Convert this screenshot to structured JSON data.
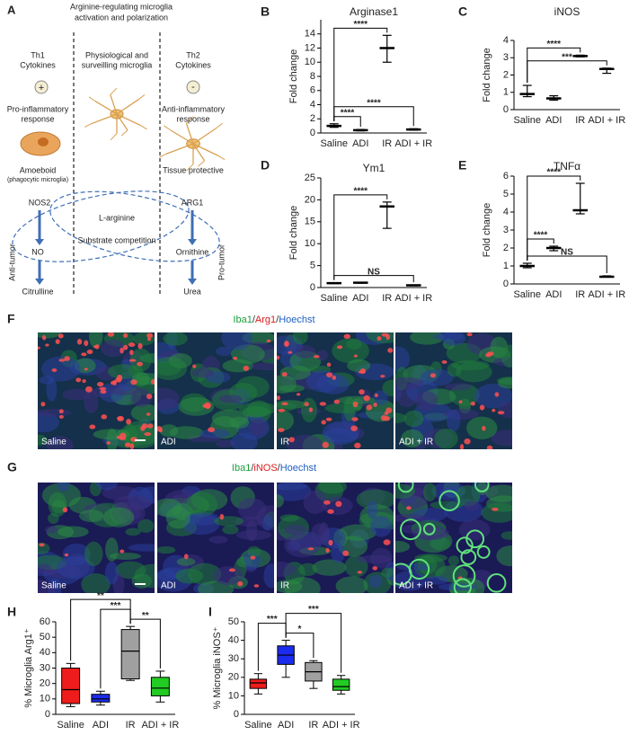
{
  "chart_data": [
    {
      "panel": "B",
      "type": "errorbar",
      "title": "Arginase1",
      "ylabel": "Fold change",
      "color": "#000000",
      "categories": [
        "Saline",
        "ADI",
        "IR",
        "ADI + IR"
      ],
      "values": [
        1.0,
        0.4,
        12,
        0.5
      ],
      "low": [
        0.8,
        0.3,
        10,
        0.4
      ],
      "high": [
        1.3,
        0.5,
        13.8,
        0.6
      ],
      "ylim": [
        0,
        16
      ],
      "yticks": [
        0,
        2,
        4,
        6,
        8,
        10,
        12,
        14
      ],
      "annotations": [
        {
          "text": "****",
          "pair": [
            0,
            2
          ]
        },
        {
          "text": "****",
          "pair": [
            0,
            1
          ]
        },
        {
          "text": "****",
          "pair": [
            0,
            3
          ]
        }
      ]
    },
    {
      "panel": "C",
      "type": "errorbar",
      "title": "iNOS",
      "ylabel": "Fold change",
      "color": "#000000",
      "categories": [
        "Saline",
        "ADI",
        "IR",
        "ADI + IR"
      ],
      "values": [
        0.9,
        0.65,
        3.1,
        2.35
      ],
      "low": [
        0.75,
        0.55,
        3.05,
        2.1
      ],
      "high": [
        1.4,
        0.8,
        3.15,
        2.4
      ],
      "ylim": [
        0,
        4
      ],
      "yticks": [
        0,
        1,
        2,
        3,
        4
      ],
      "annotations": [
        {
          "text": "****",
          "pair": [
            0,
            2
          ]
        },
        {
          "text": "***",
          "pair": [
            0,
            3
          ]
        }
      ]
    },
    {
      "panel": "D",
      "type": "errorbar",
      "title": "Ym1",
      "ylabel": "Fold change",
      "color": "#000000",
      "categories": [
        "Saline",
        "ADI",
        "IR",
        "ADI + IR"
      ],
      "values": [
        1.0,
        1.1,
        18.5,
        0.5
      ],
      "low": [
        0.9,
        1.0,
        13.5,
        0.4
      ],
      "high": [
        1.1,
        1.2,
        19.5,
        0.6
      ],
      "ylim": [
        0,
        25
      ],
      "yticks": [
        0,
        5,
        10,
        15,
        20,
        25
      ],
      "annotations": [
        {
          "text": "****",
          "pair": [
            0,
            2
          ]
        },
        {
          "text": "NS",
          "pair": [
            0,
            3
          ]
        }
      ]
    },
    {
      "panel": "E",
      "type": "errorbar",
      "title": "TNFα",
      "ylabel": "Fold change",
      "color": "#000000",
      "categories": [
        "Saline",
        "ADI",
        "IR",
        "ADI + IR"
      ],
      "values": [
        1.0,
        2.0,
        4.1,
        0.4
      ],
      "low": [
        0.9,
        1.85,
        3.9,
        0.38
      ],
      "high": [
        1.15,
        2.1,
        5.6,
        0.45
      ],
      "ylim": [
        0,
        6
      ],
      "yticks": [
        0,
        1,
        2,
        3,
        4,
        5,
        6
      ],
      "annotations": [
        {
          "text": "****",
          "pair": [
            0,
            1
          ]
        },
        {
          "text": "****",
          "pair": [
            0,
            2
          ]
        },
        {
          "text": "NS",
          "pair": [
            0,
            3
          ]
        }
      ]
    },
    {
      "panel": "H",
      "type": "box",
      "ylabel": "% Microglia Arg1⁺",
      "categories": [
        "Saline",
        "ADI",
        "IR",
        "ADI + IR"
      ],
      "colors": [
        "#ee1c1c",
        "#1c2cee",
        "#a0a0a0",
        "#22cc22"
      ],
      "min": [
        5,
        6,
        22,
        8
      ],
      "q1": [
        7,
        8,
        23,
        12
      ],
      "median": [
        16,
        10,
        41,
        17
      ],
      "q3": [
        30,
        13,
        55,
        24
      ],
      "max": [
        33,
        15,
        57,
        28
      ],
      "ylim": [
        0,
        60
      ],
      "yticks": [
        0,
        10,
        20,
        30,
        40,
        50,
        60
      ],
      "annotations": [
        {
          "text": "**",
          "pair": [
            2,
            3
          ]
        },
        {
          "text": "***",
          "pair": [
            1,
            2
          ]
        },
        {
          "text": "**",
          "pair": [
            0,
            2
          ]
        }
      ]
    },
    {
      "panel": "I",
      "type": "box",
      "ylabel": "% Microglia iNOS⁺",
      "categories": [
        "Saline",
        "ADI",
        "IR",
        "ADI + IR"
      ],
      "colors": [
        "#ee1c1c",
        "#1c2cee",
        "#a0a0a0",
        "#22cc22"
      ],
      "min": [
        11,
        20,
        14,
        11
      ],
      "q1": [
        14,
        27,
        18,
        13
      ],
      "median": [
        17,
        32,
        23,
        15
      ],
      "q3": [
        19,
        37,
        28,
        19
      ],
      "max": [
        22,
        40,
        29,
        21
      ],
      "ylim": [
        0,
        50
      ],
      "yticks": [
        0,
        10,
        20,
        30,
        40,
        50
      ],
      "annotations": [
        {
          "text": "*",
          "pair": [
            1,
            2
          ]
        },
        {
          "text": "***",
          "pair": [
            0,
            1
          ]
        },
        {
          "text": "***",
          "pair": [
            1,
            3
          ]
        }
      ]
    }
  ],
  "diagram": {
    "panel": "A",
    "title": [
      "Arginine-regulating microglia",
      "activation and polarization"
    ],
    "left": {
      "stimulus": [
        "Th1",
        "Cytokines"
      ],
      "sign": "+",
      "response": [
        "Pro-inflammatory",
        "response"
      ],
      "morphology": [
        "Amoeboid",
        "(phagocytic microglia)"
      ],
      "enzyme": "NOS2",
      "product": "NO",
      "end_product": "Citrulline",
      "outcome": "Anti-tumor"
    },
    "middle": {
      "state": [
        "Physiological and",
        "surveilling microglia"
      ],
      "substrate": "L-arginine",
      "note": "Substrate competition"
    },
    "right": {
      "stimulus": [
        "Th2",
        "Cytokines"
      ],
      "sign": "-",
      "response": [
        "Anti-inflammatory",
        "response"
      ],
      "morphology": [
        "Tissue protective"
      ],
      "enzyme": "ARG1",
      "product": "Ornithine",
      "end_product": "Urea",
      "outcome": "Pro-tumor"
    }
  },
  "images": [
    {
      "panel": "F",
      "title": [
        {
          "text": "Iba1",
          "color": "#1a9e3a"
        },
        {
          "text": "/",
          "color": "#333333"
        },
        {
          "text": "Arg1",
          "color": "#e01818"
        },
        {
          "text": "/",
          "color": "#333333"
        },
        {
          "text": "Hoechst",
          "color": "#1f5fbf"
        }
      ],
      "labels": [
        "Saline",
        "ADI",
        "IR",
        "ADI + IR"
      ]
    },
    {
      "panel": "G",
      "title": [
        {
          "text": "Iba1",
          "color": "#1a9e3a"
        },
        {
          "text": "/",
          "color": "#333333"
        },
        {
          "text": "iNOS",
          "color": "#e01818"
        },
        {
          "text": "/",
          "color": "#333333"
        },
        {
          "text": "Hoechst",
          "color": "#1f5fbf"
        }
      ],
      "labels": [
        "Saline",
        "ADI",
        "IR",
        "ADI + IR"
      ]
    }
  ]
}
